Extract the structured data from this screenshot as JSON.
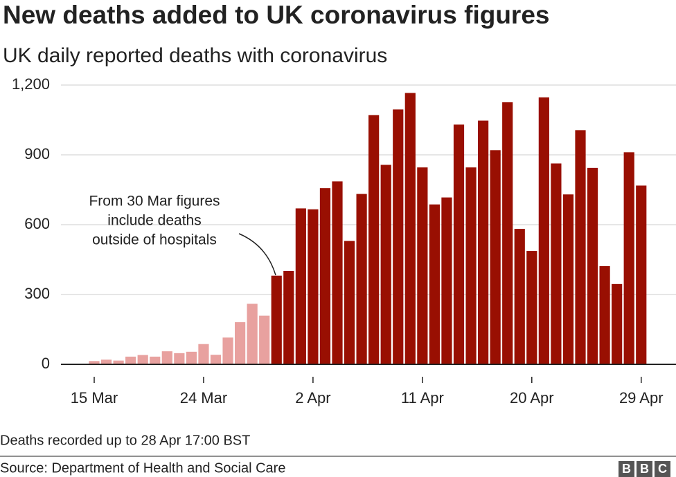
{
  "chart_data": {
    "type": "bar",
    "title": "New deaths added to UK coronavirus figures",
    "subtitle": "UK daily reported deaths with coronavirus",
    "categories": [
      "15 Mar",
      null,
      null,
      null,
      null,
      null,
      null,
      null,
      null,
      "24 Mar",
      null,
      null,
      null,
      null,
      null,
      null,
      null,
      null,
      "2 Apr",
      null,
      null,
      null,
      null,
      null,
      null,
      null,
      null,
      "11 Apr",
      null,
      null,
      null,
      null,
      null,
      null,
      null,
      null,
      "20 Apr",
      null,
      null,
      null,
      null,
      null,
      null,
      null,
      null,
      "29 Apr"
    ],
    "values": [
      14,
      20,
      16,
      33,
      40,
      33,
      56,
      48,
      54,
      87,
      41,
      115,
      181,
      260,
      209,
      381,
      401,
      670,
      666,
      757,
      786,
      530,
      732,
      1071,
      857,
      1095,
      1166,
      846,
      687,
      717,
      1030,
      846,
      1047,
      920,
      1126,
      582,
      487,
      1147,
      863,
      730,
      1006,
      844,
      422,
      345,
      911,
      768
    ],
    "colors": [
      "#e8a19f",
      "#e8a19f",
      "#e8a19f",
      "#e8a19f",
      "#e8a19f",
      "#e8a19f",
      "#e8a19f",
      "#e8a19f",
      "#e8a19f",
      "#e8a19f",
      "#e8a19f",
      "#e8a19f",
      "#e8a19f",
      "#e8a19f",
      "#e8a19f",
      "#990f02",
      "#990f02",
      "#990f02",
      "#990f02",
      "#990f02",
      "#990f02",
      "#990f02",
      "#990f02",
      "#990f02",
      "#990f02",
      "#990f02",
      "#990f02",
      "#990f02",
      "#990f02",
      "#990f02",
      "#990f02",
      "#990f02",
      "#990f02",
      "#990f02",
      "#990f02",
      "#990f02",
      "#990f02",
      "#990f02",
      "#990f02",
      "#990f02",
      "#990f02",
      "#990f02",
      "#990f02",
      "#990f02",
      "#990f02",
      "#990f02"
    ],
    "ylim": [
      0,
      1200
    ],
    "yticks": [
      0,
      300,
      600,
      900,
      {
        "value": 1200,
        "label": "1,200"
      }
    ],
    "grid": true,
    "annotation": [
      "From 30 Mar figures",
      "include deaths",
      "outside of hospitals"
    ],
    "footnote": "Deaths recorded up to 28 Apr 17:00 BST",
    "source": "Source: Department of Health and Social Care",
    "logo": [
      "B",
      "B",
      "C"
    ]
  }
}
